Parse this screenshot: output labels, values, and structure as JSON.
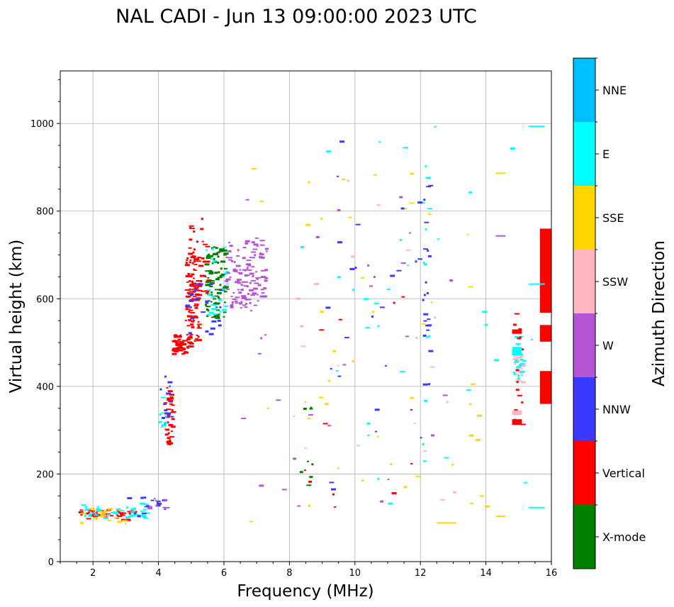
{
  "chart_data": {
    "type": "scatter",
    "title": "NAL CADI - Jun 13 09:00:00 2023 UTC",
    "xlabel": "Frequency (MHz)",
    "ylabel": "Virtual height (km)",
    "xlim": [
      1,
      16
    ],
    "ylim": [
      0,
      1120
    ],
    "xticks": [
      2,
      4,
      6,
      8,
      10,
      12,
      14,
      16
    ],
    "yticks": [
      0,
      200,
      400,
      600,
      800,
      1000
    ],
    "grid": true,
    "colorbar": {
      "title": "Azimuth Direction",
      "categories": [
        {
          "name": "X-mode",
          "color": "#008000"
        },
        {
          "name": "Vertical",
          "color": "#ff0000"
        },
        {
          "name": "NNW",
          "color": "#3a3aff"
        },
        {
          "name": "W",
          "color": "#b455d6"
        },
        {
          "name": "SSW",
          "color": "#ffb6c1"
        },
        {
          "name": "SSE",
          "color": "#ffd700"
        },
        {
          "name": "E",
          "color": "#00ffff"
        },
        {
          "name": "NNE",
          "color": "#00bfff"
        }
      ]
    },
    "regions": [
      {
        "name": "low-e-layer-mixed",
        "cat": "Vertical",
        "x": [
          1.5,
          3.2
        ],
        "y": [
          95,
          120
        ],
        "n": 45
      },
      {
        "name": "low-e-layer-e",
        "cat": "E",
        "x": [
          1.6,
          3.6
        ],
        "y": [
          100,
          135
        ],
        "n": 45
      },
      {
        "name": "low-e-layer-sse",
        "cat": "SSE",
        "x": [
          1.6,
          3.0
        ],
        "y": [
          88,
          125
        ],
        "n": 18
      },
      {
        "name": "low-e-layer-nnw",
        "cat": "NNW",
        "x": [
          3.0,
          4.2
        ],
        "y": [
          100,
          155
        ],
        "n": 15
      },
      {
        "name": "low-e-layer-w",
        "cat": "W",
        "x": [
          3.6,
          4.2
        ],
        "y": [
          110,
          160
        ],
        "n": 8
      },
      {
        "name": "es-trace-vertical",
        "cat": "Vertical",
        "x": [
          4.15,
          4.4
        ],
        "y": [
          265,
          400
        ],
        "n": 40
      },
      {
        "name": "es-trace-nnw",
        "cat": "NNW",
        "x": [
          4.0,
          4.4
        ],
        "y": [
          330,
          430
        ],
        "n": 12
      },
      {
        "name": "es-trace-e",
        "cat": "E",
        "x": [
          4.0,
          4.3
        ],
        "y": [
          280,
          380
        ],
        "n": 8
      },
      {
        "name": "f-trace-vertical-lower",
        "cat": "Vertical",
        "x": [
          4.4,
          4.95
        ],
        "y": [
          475,
          520
        ],
        "n": 70
      },
      {
        "name": "f-trace-vertical-rise",
        "cat": "Vertical",
        "x": [
          4.8,
          5.2
        ],
        "y": [
          500,
          700
        ],
        "n": 90
      },
      {
        "name": "f-trace-vertical-top",
        "cat": "Vertical",
        "x": [
          4.9,
          5.5
        ],
        "y": [
          600,
          790
        ],
        "n": 50
      },
      {
        "name": "f-trace-xmode",
        "cat": "X-mode",
        "x": [
          5.4,
          6.0
        ],
        "y": [
          555,
          720
        ],
        "n": 90
      },
      {
        "name": "f-trace-nnw",
        "cat": "NNW",
        "x": [
          4.8,
          5.9
        ],
        "y": [
          520,
          640
        ],
        "n": 25
      },
      {
        "name": "f-trace-e",
        "cat": "E",
        "x": [
          5.4,
          6.1
        ],
        "y": [
          560,
          720
        ],
        "n": 25
      },
      {
        "name": "f-trace-w",
        "cat": "W",
        "x": [
          6.0,
          7.3
        ],
        "y": [
          580,
          740
        ],
        "n": 120
      },
      {
        "name": "scatter-mid-sse",
        "cat": "SSE",
        "x": [
          6.5,
          14.0
        ],
        "y": [
          90,
          900
        ],
        "n": 45
      },
      {
        "name": "scatter-mid-w",
        "cat": "W",
        "x": [
          6.5,
          13.0
        ],
        "y": [
          90,
          860
        ],
        "n": 30
      },
      {
        "name": "scatter-mid-e",
        "cat": "E",
        "x": [
          8.0,
          15.8
        ],
        "y": [
          120,
          1000
        ],
        "n": 30
      },
      {
        "name": "scatter-mid-nnw",
        "cat": "NNW",
        "x": [
          8.5,
          12.2
        ],
        "y": [
          90,
          990
        ],
        "n": 25
      },
      {
        "name": "scatter-mid-pink",
        "cat": "SSW",
        "x": [
          8.0,
          13.2
        ],
        "y": [
          90,
          880
        ],
        "n": 20
      },
      {
        "name": "scatter-mid-xmode",
        "cat": "X-mode",
        "x": [
          8.3,
          8.7
        ],
        "y": [
          170,
          370
        ],
        "n": 8
      },
      {
        "name": "scatter-mid-vertical",
        "cat": "Vertical",
        "x": [
          8.4,
          12.3
        ],
        "y": [
          90,
          620
        ],
        "n": 12
      },
      {
        "name": "column-12mhz-nnw",
        "cat": "NNW",
        "x": [
          12.05,
          12.25
        ],
        "y": [
          400,
          990
        ],
        "n": 22
      },
      {
        "name": "column-12mhz-e",
        "cat": "E",
        "x": [
          12.05,
          12.25
        ],
        "y": [
          180,
          930
        ],
        "n": 12
      },
      {
        "name": "column-15mhz-pink",
        "cat": "SSW",
        "x": [
          14.8,
          15.1
        ],
        "y": [
          410,
          470
        ],
        "n": 25
      },
      {
        "name": "column-15mhz-e",
        "cat": "E",
        "x": [
          14.8,
          15.1
        ],
        "y": [
          420,
          520
        ],
        "n": 25
      },
      {
        "name": "column-15mhz-vertical",
        "cat": "Vertical",
        "x": [
          14.8,
          15.1
        ],
        "y": [
          310,
          580
        ],
        "n": 14
      }
    ],
    "blocks": [
      {
        "cat": "Vertical",
        "x": [
          15.65,
          16.0
        ],
        "y": [
          360,
          435
        ]
      },
      {
        "cat": "Vertical",
        "x": [
          15.65,
          16.0
        ],
        "y": [
          502,
          540
        ]
      },
      {
        "cat": "Vertical",
        "x": [
          15.65,
          16.0
        ],
        "y": [
          568,
          760
        ]
      },
      {
        "cat": "Vertical",
        "x": [
          14.8,
          15.1
        ],
        "y": [
          312,
          325
        ]
      },
      {
        "cat": "SSW",
        "x": [
          14.8,
          15.1
        ],
        "y": [
          335,
          345
        ]
      },
      {
        "cat": "E",
        "x": [
          14.8,
          15.1
        ],
        "y": [
          470,
          490
        ]
      },
      {
        "cat": "Vertical",
        "x": [
          14.8,
          15.1
        ],
        "y": [
          520,
          530
        ]
      }
    ],
    "segments": [
      {
        "cat": "E",
        "x": [
          15.3,
          15.8
        ],
        "y": 995
      },
      {
        "cat": "E",
        "x": [
          15.3,
          15.8
        ],
        "y": 635
      },
      {
        "cat": "E",
        "x": [
          15.3,
          15.8
        ],
        "y": 125
      },
      {
        "cat": "SSE",
        "x": [
          12.5,
          13.1
        ],
        "y": 90
      },
      {
        "cat": "SSE",
        "x": [
          14.3,
          14.6
        ],
        "y": 888
      },
      {
        "cat": "SSE",
        "x": [
          14.3,
          14.6
        ],
        "y": 105
      },
      {
        "cat": "W",
        "x": [
          14.3,
          14.6
        ],
        "y": 745
      }
    ]
  }
}
